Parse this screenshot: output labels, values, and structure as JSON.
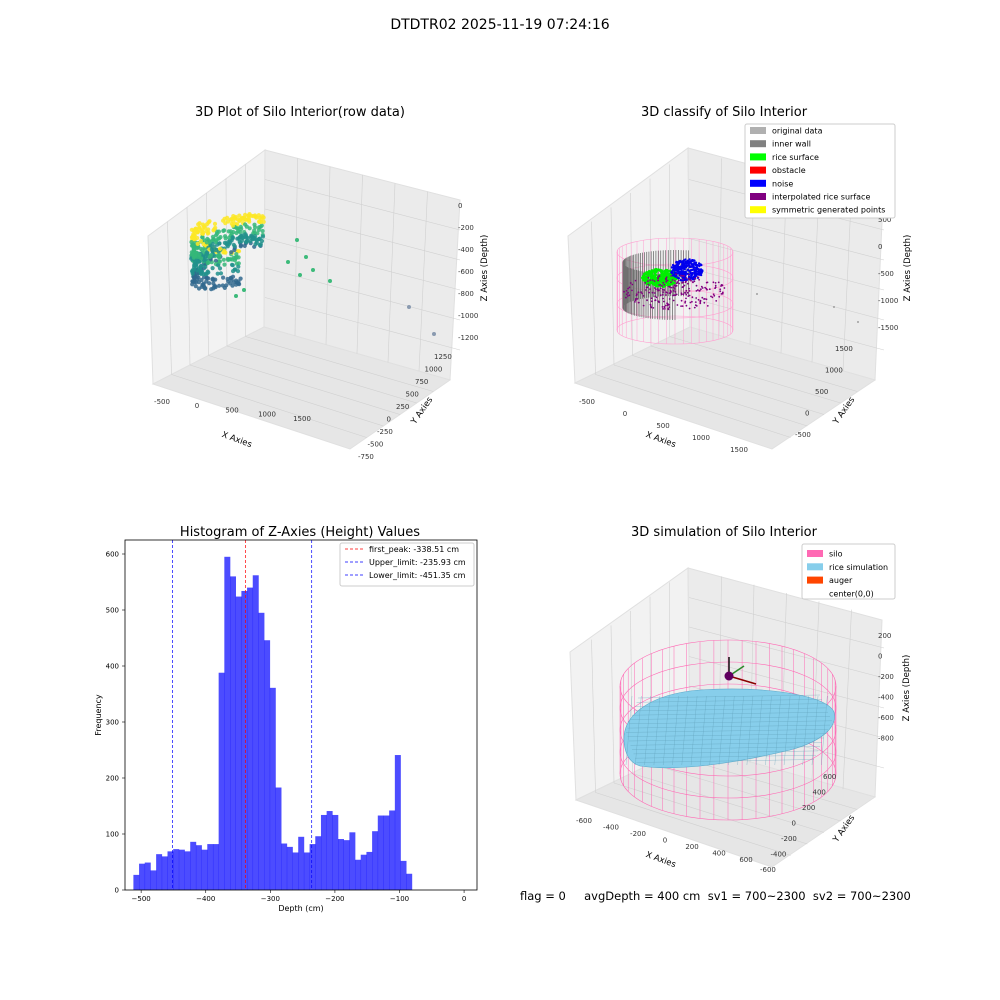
{
  "suptitle": "DTDTR02 2025-11-19 07:24:16",
  "footer": "flag = 0     avgDepth = 400 cm  sv1 = 700~2300  sv2 = 700~2300",
  "chart_data": [
    {
      "type": "scatter",
      "title": "3D Plot of Silo Interior(row data)",
      "xlabel": "X Axies",
      "ylabel": "Y Axies",
      "zlabel": "Z Axies (Depth)",
      "xticks": [
        "-500",
        "0",
        "500",
        "1000",
        "1500"
      ],
      "yticks": [
        "-750",
        "-500",
        "-250",
        "0",
        "250",
        "500",
        "750",
        "1000",
        "1250"
      ],
      "zticks": [
        "0",
        "-200",
        "-400",
        "-600",
        "-800",
        "-1000",
        "-1200"
      ],
      "colormap": [
        "#44015a",
        "#31688e",
        "#21918c",
        "#35b779",
        "#fde725"
      ]
    },
    {
      "type": "scatter",
      "title": "3D classify of Silo Interior",
      "xlabel": "X Axies",
      "ylabel": "Y Axies",
      "zlabel": "Z Axies (Depth)",
      "xticks": [
        "-500",
        "0",
        "500",
        "1000",
        "1500"
      ],
      "yticks": [
        "-500",
        "0",
        "500",
        "1000",
        "1500"
      ],
      "zticks": [
        "500",
        "0",
        "-500",
        "-1000",
        "-1500"
      ],
      "legend_position": "top-right",
      "legend": [
        {
          "label": "original data",
          "color": "#b0b0b0"
        },
        {
          "label": "inner wall",
          "color": "#808080"
        },
        {
          "label": "rice surface",
          "color": "#00ff00"
        },
        {
          "label": "obstacle",
          "color": "#ff0000"
        },
        {
          "label": "noise",
          "color": "#0000ff"
        },
        {
          "label": "interpolated rice surface",
          "color": "#800080"
        },
        {
          "label": "symmetric generated points",
          "color": "#ffff00"
        }
      ]
    },
    {
      "type": "bar",
      "title": "Histogram of Z-Axies (Height) Values",
      "xlabel": "Depth (cm)",
      "ylabel": "Frequency",
      "xlim": [
        -525,
        20
      ],
      "ylim": [
        0,
        625
      ],
      "xticks": [
        -500,
        -400,
        -300,
        -200,
        -100,
        0
      ],
      "yticks": [
        0,
        100,
        200,
        300,
        400,
        500,
        600
      ],
      "bar_color": "#0000ff",
      "bin_start": -512,
      "bin_width": 8.8,
      "values": [
        27,
        47,
        49,
        35,
        64,
        60,
        69,
        73,
        72,
        69,
        86,
        80,
        72,
        82,
        82,
        388,
        595,
        560,
        524,
        534,
        540,
        562,
        495,
        446,
        361,
        183,
        83,
        77,
        67,
        95,
        67,
        82,
        96,
        134,
        141,
        134,
        91,
        89,
        103,
        54,
        63,
        68,
        105,
        133,
        133,
        142,
        241,
        52,
        29
      ],
      "vlines": [
        {
          "x": -338.51,
          "color": "#ff0000",
          "label": "first_peak: -338.51 cm"
        },
        {
          "x": -235.93,
          "color": "#0000ff",
          "label": "Upper_limit: -235.93 cm"
        },
        {
          "x": -451.35,
          "color": "#0000ff",
          "label": "Lower_limit: -451.35 cm"
        }
      ],
      "legend_position": "top-right"
    },
    {
      "type": "scatter",
      "title": "3D simulation of Silo Interior",
      "xlabel": "X Axies",
      "ylabel": "Y Axies",
      "zlabel": "Z Axies (Depth)",
      "xticks": [
        "-600",
        "-400",
        "-200",
        "0",
        "200",
        "400",
        "600"
      ],
      "yticks": [
        "-600",
        "-400",
        "-200",
        "0",
        "200",
        "400",
        "600"
      ],
      "zticks": [
        "200",
        "0",
        "-200",
        "-400",
        "-600",
        "-800"
      ],
      "legend_position": "top-right",
      "legend": [
        {
          "label": "silo",
          "color": "#ff69b4"
        },
        {
          "label": "rice simulation",
          "color": "#87ceeb"
        },
        {
          "label": "auger",
          "color": "#ff4500"
        },
        {
          "label": "center(0,0)",
          "color": ""
        }
      ]
    }
  ]
}
